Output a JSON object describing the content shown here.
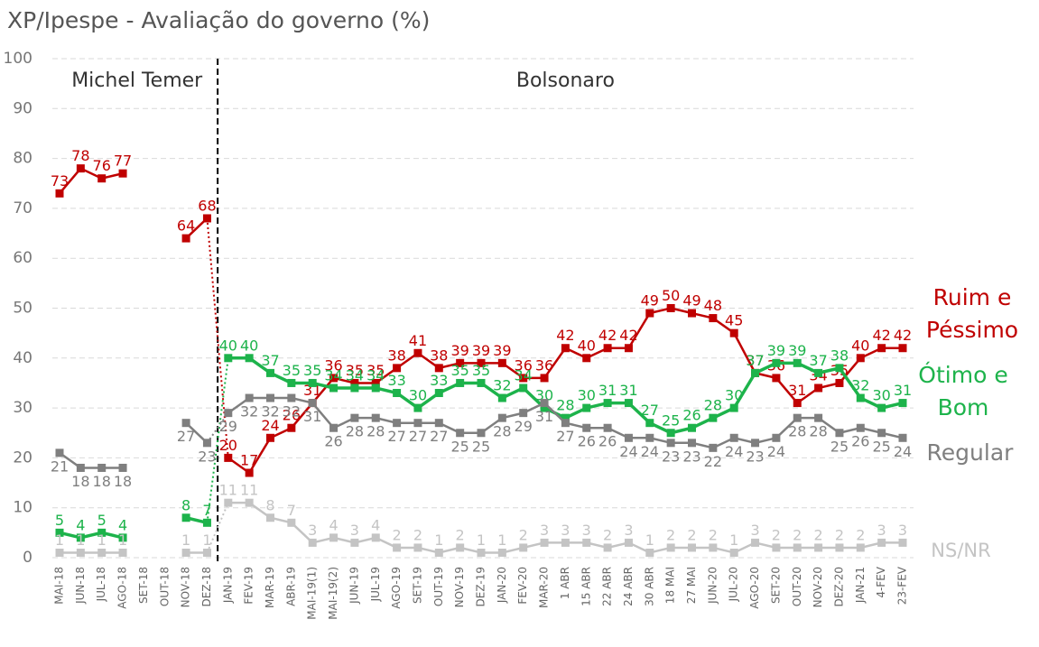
{
  "chart_data": {
    "type": "line",
    "title": "XP/Ipespe - Avaliação do governo (%)",
    "annotations": [
      "Michel Temer",
      "Bolsonaro"
    ],
    "categories": [
      "MAI-18",
      "JUN-18",
      "JUL-18",
      "AGO-18",
      "SET-18",
      "OUT-18",
      "NOV-18",
      "DEZ-18",
      "JAN-19",
      "FEV-19",
      "MAR-19",
      "ABR-19",
      "MAI-19(1)",
      "MAI-19(2)",
      "JUN-19",
      "JUL-19",
      "AGO-19",
      "SET-19",
      "OUT-19",
      "NOV-19",
      "DEZ-19",
      "JAN-20",
      "FEV-20",
      "MAR-20",
      "1 ABR",
      "15 ABR",
      "22 ABR",
      "24 ABR",
      "30 ABR",
      "18 MAI",
      "27 MAI",
      "JUN-20",
      "JUL-20",
      "AGO-20",
      "SET-20",
      "OUT-20",
      "NOV-20",
      "DEZ-20",
      "JAN-21",
      "4-FEV",
      "23-FEV"
    ],
    "series": [
      {
        "name": "Ruim e Péssimo",
        "color": "#c00000",
        "values": [
          73,
          78,
          76,
          77,
          null,
          null,
          64,
          68,
          20,
          17,
          24,
          26,
          31,
          36,
          35,
          35,
          38,
          41,
          38,
          39,
          39,
          39,
          36,
          36,
          42,
          40,
          42,
          42,
          49,
          50,
          49,
          48,
          45,
          37,
          36,
          31,
          34,
          35,
          40,
          42,
          42
        ]
      },
      {
        "name": "Ótimo e Bom",
        "color": "#1db34b",
        "values": [
          5,
          4,
          5,
          4,
          null,
          null,
          8,
          7,
          40,
          40,
          37,
          35,
          35,
          34,
          34,
          34,
          33,
          30,
          33,
          35,
          35,
          32,
          34,
          30,
          28,
          30,
          31,
          31,
          27,
          25,
          26,
          28,
          30,
          37,
          39,
          39,
          37,
          38,
          32,
          30,
          31
        ]
      },
      {
        "name": "Regular",
        "color": "#7f7f7f",
        "values": [
          21,
          18,
          18,
          18,
          null,
          null,
          27,
          23,
          29,
          32,
          32,
          32,
          31,
          26,
          28,
          28,
          27,
          27,
          27,
          25,
          25,
          28,
          29,
          31,
          27,
          26,
          26,
          24,
          24,
          23,
          23,
          22,
          24,
          23,
          24,
          28,
          28,
          25,
          26,
          25,
          24
        ]
      },
      {
        "name": "NS/NR",
        "color": "#c4c4c4",
        "values": [
          1,
          1,
          1,
          1,
          null,
          null,
          1,
          1,
          11,
          11,
          8,
          7,
          3,
          4,
          3,
          4,
          2,
          2,
          1,
          2,
          1,
          1,
          2,
          3,
          3,
          3,
          2,
          3,
          1,
          2,
          2,
          2,
          1,
          3,
          2,
          2,
          2,
          2,
          2,
          3,
          3
        ]
      }
    ],
    "ylim": [
      0,
      100
    ],
    "yticks": [
      0,
      10,
      20,
      30,
      40,
      50,
      60,
      70,
      80,
      90,
      100
    ],
    "grid": true
  }
}
